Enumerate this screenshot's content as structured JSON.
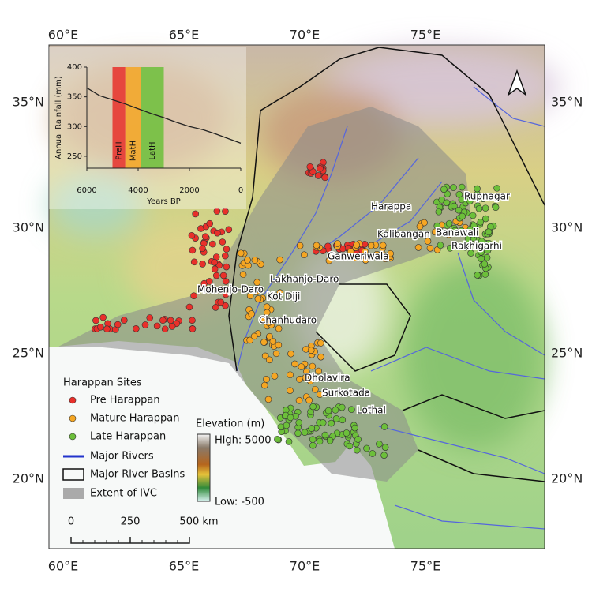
{
  "map": {
    "lon_labels": [
      "60°E",
      "65°E",
      "70°E",
      "75°E"
    ],
    "lat_labels": [
      "35°N",
      "30°N",
      "25°N",
      "20°N"
    ],
    "site_labels": [
      "Harappa",
      "Rupnagar",
      "Kalibangan",
      "Banawali",
      "Rakhigarhi",
      "Ganweriwala",
      "Lakhanjo-Daro",
      "Mohenjo-Daro",
      "Kot Diji",
      "Chanhudaro",
      "Dholavira",
      "Surkotada",
      "Lothal"
    ]
  },
  "legend": {
    "title": "Harappan Sites",
    "items": [
      "Pre Harappan",
      "Mature Harappan",
      "Late Harappan",
      "Major Rivers",
      "Major River Basins",
      "Extent of IVC"
    ]
  },
  "elevation": {
    "title": "Elevation (m)",
    "high": "High: 5000",
    "low": "Low: -500"
  },
  "scale_bar": {
    "labels": [
      "0",
      "250",
      "500 km"
    ]
  },
  "chart_data": {
    "type": "line",
    "x_label": "Years BP",
    "y_label": "Annual Rainfall (mm)",
    "x": [
      6000,
      5500,
      5000,
      4500,
      4000,
      3500,
      3000,
      2500,
      2000,
      1500,
      1000,
      500,
      0
    ],
    "series": [
      {
        "name": "Annual Rainfall",
        "color": "#222222",
        "values": [
          365,
          352,
          345,
          338,
          330,
          322,
          315,
          307,
          300,
          295,
          288,
          280,
          272
        ]
      }
    ],
    "periods": [
      {
        "name": "PreH",
        "start": 5000,
        "end": 4500,
        "color": "#e8302a"
      },
      {
        "name": "MatH",
        "start": 4500,
        "end": 3900,
        "color": "#f5a623"
      },
      {
        "name": "LatH",
        "start": 3900,
        "end": 3000,
        "color": "#6cbf3a"
      }
    ],
    "xlim": [
      6000,
      0
    ],
    "ylim": [
      230,
      400
    ],
    "xticks": [
      6000,
      4000,
      2000,
      0
    ],
    "yticks": [
      250,
      300,
      350,
      400
    ]
  }
}
